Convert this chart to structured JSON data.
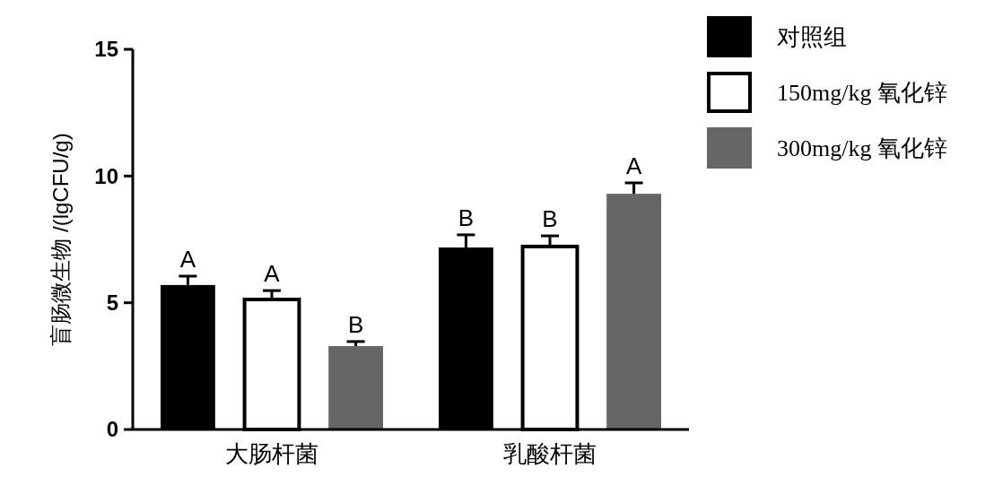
{
  "chart_data": {
    "type": "bar",
    "ylabel": "盲肠微生物 /(lgCFU/g)",
    "categories": [
      "大肠杆菌",
      "乳酸杆菌"
    ],
    "series": [
      {
        "name": "对照组",
        "color": "#000000",
        "values": [
          5.7,
          7.18
        ],
        "errors": [
          [
            5.7,
            6.05
          ],
          [
            7.18,
            7.68
          ]
        ],
        "value_labels": [
          "A",
          "B"
        ]
      },
      {
        "name": "150mg/kg 氧化锌",
        "color": "#ffffff",
        "values": [
          5.13,
          7.22
        ],
        "errors": [
          [
            5.13,
            5.48
          ],
          [
            7.22,
            7.64
          ]
        ],
        "value_labels": [
          "A",
          "B"
        ]
      },
      {
        "name": "300mg/kg 氧化锌",
        "color": "#666666",
        "values": [
          3.29,
          9.3
        ],
        "errors": [
          [
            3.29,
            3.47
          ],
          [
            9.3,
            9.73
          ]
        ],
        "value_labels": [
          "B",
          "A"
        ]
      }
    ],
    "ylim": [
      0,
      15
    ],
    "yticks": [
      0,
      5,
      10,
      15
    ],
    "grid": false,
    "legend": "right"
  }
}
